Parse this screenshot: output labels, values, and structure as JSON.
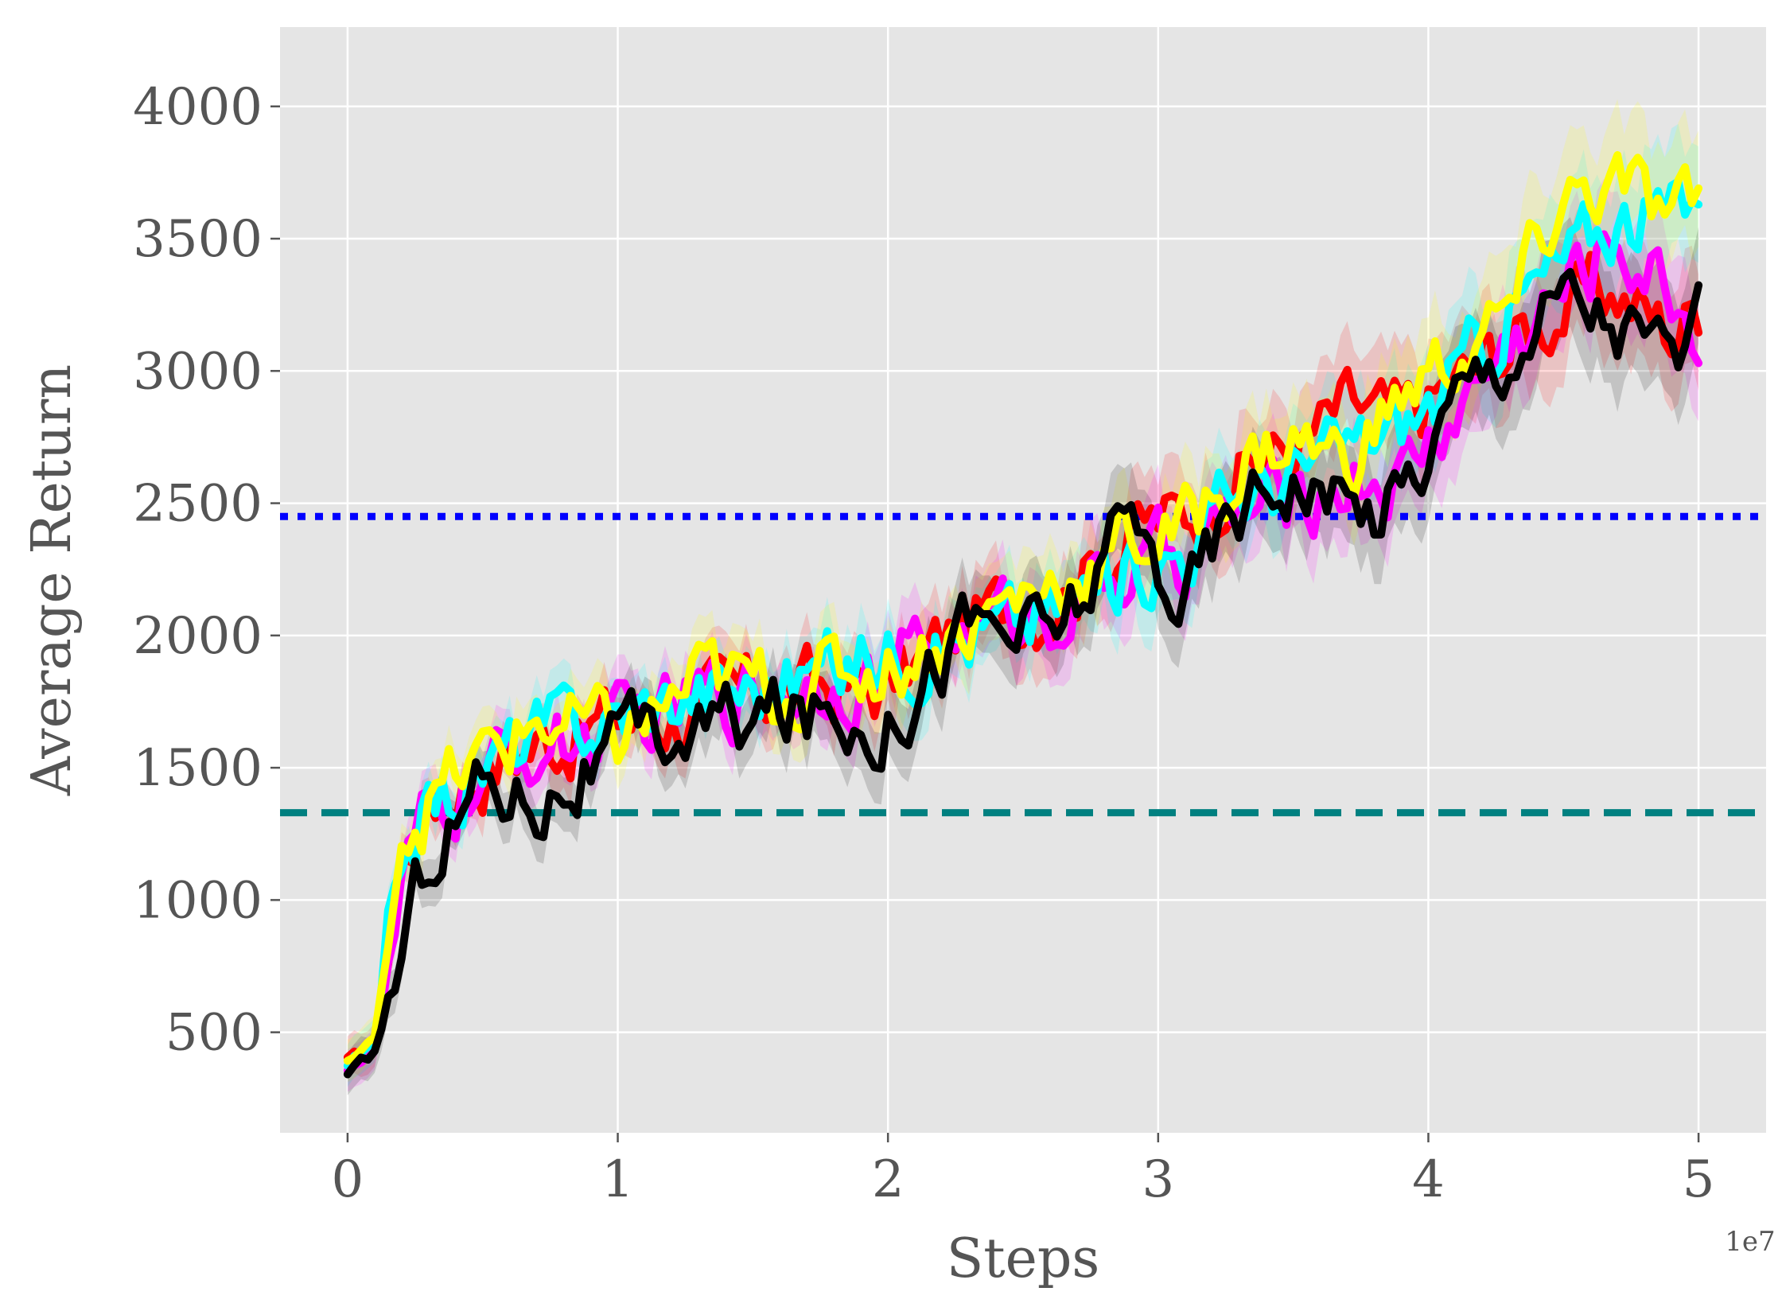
{
  "chart_data": {
    "type": "line",
    "title": "",
    "xlabel": "Steps",
    "ylabel": "Average Return",
    "x_offset_label": "1e7",
    "xlim": [
      -0.25,
      5.25
    ],
    "ylim": [
      120,
      4300
    ],
    "xticks": [
      0,
      1,
      2,
      3,
      4,
      5
    ],
    "xtick_labels": [
      "0",
      "1",
      "2",
      "3",
      "4",
      "5"
    ],
    "yticks": [
      500,
      1000,
      1500,
      2000,
      2500,
      3000,
      3500,
      4000
    ],
    "ytick_labels": [
      "500",
      "1000",
      "1500",
      "2000",
      "2500",
      "3000",
      "3500",
      "4000"
    ],
    "grid": true,
    "background": "#e5e5e5",
    "reference_lines": [
      {
        "y": 2450,
        "style": "dotted",
        "color": "#0000ff"
      },
      {
        "y": 1330,
        "style": "dashed",
        "color": "#008080"
      }
    ],
    "series": [
      {
        "color": "#ff0000",
        "x": [
          0,
          0.1,
          0.2,
          0.3,
          0.5,
          0.7,
          1.0,
          1.3,
          1.6,
          2.0,
          2.3,
          2.6,
          2.9,
          3.1,
          3.3,
          3.5,
          3.7,
          3.9,
          4.1,
          4.3,
          4.5,
          4.7,
          4.9,
          5.0
        ],
        "y": [
          390,
          440,
          1150,
          1380,
          1500,
          1600,
          1680,
          1720,
          1800,
          1800,
          2050,
          2150,
          2400,
          2450,
          2650,
          2700,
          2850,
          2800,
          2950,
          3100,
          3250,
          3300,
          3150,
          3250
        ]
      },
      {
        "color": "#ff00ff",
        "x": [
          0,
          0.1,
          0.2,
          0.3,
          0.5,
          0.7,
          1.0,
          1.3,
          1.6,
          2.0,
          2.3,
          2.6,
          2.9,
          3.1,
          3.3,
          3.5,
          3.7,
          3.9,
          4.1,
          4.3,
          4.5,
          4.7,
          4.9,
          5.0
        ],
        "y": [
          370,
          430,
          1000,
          1300,
          1450,
          1580,
          1620,
          1760,
          1820,
          1880,
          2020,
          2100,
          2250,
          2300,
          2450,
          2500,
          2600,
          2600,
          2850,
          3100,
          3300,
          3500,
          3300,
          3150
        ]
      },
      {
        "color": "#00ffff",
        "x": [
          0,
          0.1,
          0.2,
          0.3,
          0.5,
          0.7,
          1.0,
          1.3,
          1.6,
          2.0,
          2.3,
          2.6,
          2.9,
          3.1,
          3.3,
          3.5,
          3.7,
          3.9,
          4.1,
          4.3,
          4.5,
          4.7,
          4.9,
          5.0
        ],
        "y": [
          380,
          450,
          1200,
          1350,
          1500,
          1620,
          1700,
          1800,
          1820,
          1950,
          2000,
          2080,
          2250,
          2350,
          2550,
          2600,
          2700,
          2800,
          2950,
          3250,
          3400,
          3600,
          3580,
          3600
        ]
      },
      {
        "color": "#ffff00",
        "x": [
          0,
          0.1,
          0.2,
          0.3,
          0.5,
          0.7,
          1.0,
          1.3,
          1.6,
          2.0,
          2.3,
          2.6,
          2.9,
          3.1,
          3.3,
          3.5,
          3.7,
          3.9,
          4.1,
          4.3,
          4.5,
          4.7,
          4.9,
          5.0
        ],
        "y": [
          390,
          460,
          1300,
          1380,
          1520,
          1680,
          1600,
          1820,
          1800,
          1900,
          2050,
          2200,
          2350,
          2400,
          2650,
          2750,
          2650,
          2900,
          3050,
          3200,
          3650,
          3700,
          3550,
          3600
        ]
      },
      {
        "color": "#000000",
        "x": [
          0,
          0.1,
          0.2,
          0.3,
          0.5,
          0.7,
          1.0,
          1.3,
          1.6,
          2.0,
          2.3,
          2.6,
          2.9,
          3.1,
          3.3,
          3.5,
          3.7,
          3.9,
          4.1,
          4.3,
          4.5,
          4.7,
          4.9,
          5.0
        ],
        "y": [
          330,
          420,
          800,
          1200,
          1450,
          1400,
          1550,
          1650,
          1700,
          1700,
          2050,
          2000,
          2400,
          2150,
          2500,
          2650,
          2450,
          2550,
          2900,
          3100,
          3300,
          3200,
          3050,
          3150
        ]
      }
    ]
  }
}
